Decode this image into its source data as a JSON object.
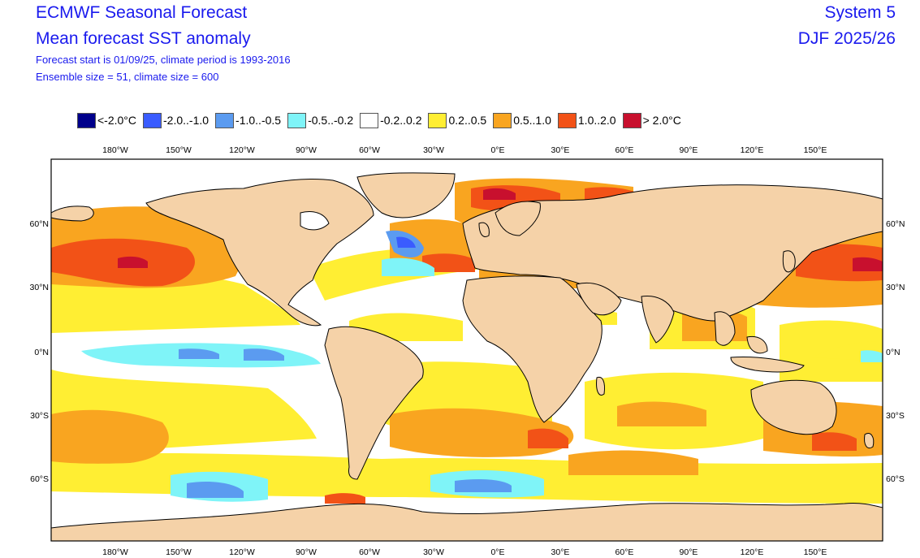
{
  "header": {
    "title": "ECMWF Seasonal Forecast",
    "subtitle": "Mean forecast SST anomaly",
    "info_line1": "Forecast start is 01/09/25, climate period is 1993-2016",
    "info_line2": "Ensemble size = 51, climate size = 600",
    "system": "System 5",
    "season": "DJF 2025/26"
  },
  "legend": [
    {
      "label": "<-2.0°C",
      "color": "#00008b"
    },
    {
      "label": "-2.0..-1.0",
      "color": "#3a5cff"
    },
    {
      "label": "-1.0..-0.5",
      "color": "#5b9bf0"
    },
    {
      "label": "-0.5..-0.2",
      "color": "#7ff4f8"
    },
    {
      "label": "-0.2..0.2",
      "color": "#ffffff"
    },
    {
      "label": "0.2..0.5",
      "color": "#ffee33"
    },
    {
      "label": "0.5..1.0",
      "color": "#f9a520"
    },
    {
      "label": "1.0..2.0",
      "color": "#f25217"
    },
    {
      "label": "> 2.0°C",
      "color": "#c8102e"
    }
  ],
  "axes": {
    "lon_labels": [
      "180°W",
      "150°W",
      "120°W",
      "90°W",
      "60°W",
      "30°W",
      "0°E",
      "30°E",
      "60°E",
      "90°E",
      "120°E",
      "150°E"
    ],
    "lat_labels": [
      "60°N",
      "30°N",
      "0°N",
      "30°S",
      "60°S"
    ]
  },
  "colors": {
    "land": "#f5d2a8",
    "ocean_neutral": "#ffffff",
    "coast": "#000000"
  }
}
